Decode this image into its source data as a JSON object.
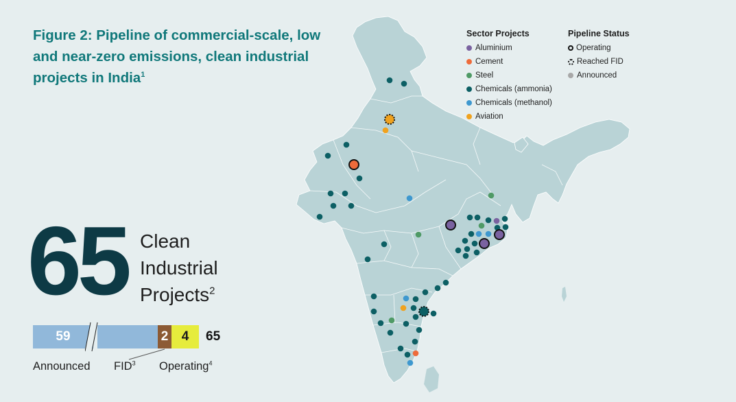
{
  "title": {
    "text": "Figure 2: Pipeline of commercial-scale, low and near-zero emissions, clean industrial projects in India",
    "footnote": "1"
  },
  "summary": {
    "total": "65",
    "label_line1": "Clean",
    "label_line2": "Industrial",
    "label_line3": "Projects",
    "label_footnote": "2"
  },
  "pipeline_bar": {
    "announced": "59",
    "fid": "2",
    "operating": "4",
    "total": "65",
    "announced_label": "Announced",
    "fid_label": "FID",
    "fid_footnote": "3",
    "operating_label": "Operating",
    "operating_footnote": "4",
    "colors": {
      "announced": "#91b8da",
      "fid": "#8c5a34",
      "operating": "#e6ec3c"
    }
  },
  "legend": {
    "sectors_title": "Sector Projects",
    "sectors": [
      {
        "label": "Aluminium",
        "color": "#7a62a0"
      },
      {
        "label": "Cement",
        "color": "#ee6b3b"
      },
      {
        "label": "Steel",
        "color": "#4f9a66"
      },
      {
        "label": "Chemicals (ammonia)",
        "color": "#0c5f64"
      },
      {
        "label": "Chemicals (methanol)",
        "color": "#3e98cf"
      },
      {
        "label": "Aviation",
        "color": "#f0a21e"
      }
    ],
    "status_title": "Pipeline Status",
    "statuses": [
      {
        "label": "Operating",
        "icon": "solid-ring"
      },
      {
        "label": "Reached FID",
        "icon": "dotted-ring"
      },
      {
        "label": "Announced",
        "icon": "grey-dot"
      }
    ]
  },
  "map": {
    "land_color": "#b9d3d6",
    "projects": [
      {
        "sector": "Chemicals (ammonia)",
        "status": "Announced"
      },
      {
        "sector": "Chemicals (ammonia)",
        "status": "Announced"
      },
      {
        "sector": "Aviation",
        "status": "Reached FID"
      },
      {
        "sector": "Aviation",
        "status": "Announced"
      },
      {
        "sector": "Chemicals (ammonia)",
        "status": "Announced"
      },
      {
        "sector": "Chemicals (ammonia)",
        "status": "Announced"
      },
      {
        "sector": "Cement",
        "status": "Operating"
      },
      {
        "sector": "Chemicals (ammonia)",
        "status": "Announced"
      },
      {
        "sector": "Chemicals (ammonia)",
        "status": "Announced"
      },
      {
        "sector": "Chemicals (ammonia)",
        "status": "Announced"
      },
      {
        "sector": "Chemicals (ammonia)",
        "status": "Announced"
      },
      {
        "sector": "Chemicals (ammonia)",
        "status": "Announced"
      },
      {
        "sector": "Chemicals (ammonia)",
        "status": "Announced"
      },
      {
        "sector": "Chemicals (methanol)",
        "status": "Announced"
      },
      {
        "sector": "Steel",
        "status": "Announced"
      },
      {
        "sector": "Aluminium",
        "status": "Operating"
      },
      {
        "sector": "Chemicals (ammonia)",
        "status": "Announced"
      },
      {
        "sector": "Chemicals (ammonia)",
        "status": "Announced"
      },
      {
        "sector": "Chemicals (ammonia)",
        "status": "Announced"
      },
      {
        "sector": "Aluminium",
        "status": "Announced"
      },
      {
        "sector": "Chemicals (ammonia)",
        "status": "Announced"
      },
      {
        "sector": "Steel",
        "status": "Announced"
      },
      {
        "sector": "Chemicals (ammonia)",
        "status": "Announced"
      },
      {
        "sector": "Chemicals (ammonia)",
        "status": "Announced"
      },
      {
        "sector": "Chemicals (ammonia)",
        "status": "Announced"
      },
      {
        "sector": "Chemicals (methanol)",
        "status": "Announced"
      },
      {
        "sector": "Chemicals (methanol)",
        "status": "Announced"
      },
      {
        "sector": "Aluminium",
        "status": "Operating"
      },
      {
        "sector": "Chemicals (ammonia)",
        "status": "Announced"
      },
      {
        "sector": "Chemicals (ammonia)",
        "status": "Announced"
      },
      {
        "sector": "Chemicals (ammonia)",
        "status": "Announced"
      },
      {
        "sector": "Aluminium",
        "status": "Operating"
      },
      {
        "sector": "Chemicals (ammonia)",
        "status": "Announced"
      },
      {
        "sector": "Chemicals (ammonia)",
        "status": "Announced"
      },
      {
        "sector": "Chemicals (ammonia)",
        "status": "Announced"
      },
      {
        "sector": "Steel",
        "status": "Announced"
      },
      {
        "sector": "Chemicals (ammonia)",
        "status": "Announced"
      },
      {
        "sector": "Chemicals (ammonia)",
        "status": "Announced"
      },
      {
        "sector": "Chemicals (ammonia)",
        "status": "Announced"
      },
      {
        "sector": "Chemicals (ammonia)",
        "status": "Announced"
      },
      {
        "sector": "Chemicals (methanol)",
        "status": "Announced"
      },
      {
        "sector": "Chemicals (ammonia)",
        "status": "Announced"
      },
      {
        "sector": "Chemicals (ammonia)",
        "status": "Announced"
      },
      {
        "sector": "Chemicals (ammonia)",
        "status": "Announced"
      },
      {
        "sector": "Aviation",
        "status": "Announced"
      },
      {
        "sector": "Chemicals (ammonia)",
        "status": "Announced"
      },
      {
        "sector": "Chemicals (ammonia)",
        "status": "Reached FID"
      },
      {
        "sector": "Chemicals (ammonia)",
        "status": "Announced"
      },
      {
        "sector": "Chemicals (ammonia)",
        "status": "Announced"
      },
      {
        "sector": "Steel",
        "status": "Announced"
      },
      {
        "sector": "Chemicals (ammonia)",
        "status": "Announced"
      },
      {
        "sector": "Chemicals (ammonia)",
        "status": "Announced"
      },
      {
        "sector": "Chemicals (ammonia)",
        "status": "Announced"
      },
      {
        "sector": "Chemicals (ammonia)",
        "status": "Announced"
      },
      {
        "sector": "Chemicals (ammonia)",
        "status": "Announced"
      },
      {
        "sector": "Chemicals (ammonia)",
        "status": "Announced"
      },
      {
        "sector": "Chemicals (ammonia)",
        "status": "Announced"
      },
      {
        "sector": "Cement",
        "status": "Announced"
      },
      {
        "sector": "Chemicals (methanol)",
        "status": "Announced"
      },
      {
        "sector": "Chemicals (ammonia)",
        "status": "Announced"
      },
      {
        "sector": "Chemicals (ammonia)",
        "status": "Announced"
      },
      {
        "sector": "Chemicals (ammonia)",
        "status": "Announced"
      }
    ]
  }
}
